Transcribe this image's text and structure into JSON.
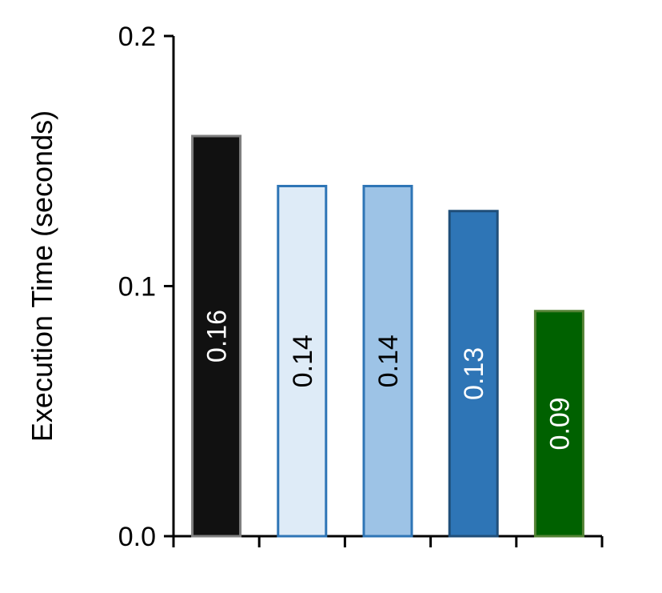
{
  "chart_data": {
    "type": "bar",
    "ylabel": "Execution Time (seconds)",
    "xlabel": "",
    "ylim": [
      0,
      0.2
    ],
    "yticks": [
      "0.0",
      "0.1",
      "0.2"
    ],
    "ytick_values": [
      0.0,
      0.1,
      0.2
    ],
    "grid": false,
    "legend": "none",
    "bars": [
      {
        "value": 0.16,
        "label": "0.16",
        "fill": "#111111",
        "stroke": "#7f7f7f",
        "label_color": "#ffffff"
      },
      {
        "value": 0.14,
        "label": "0.14",
        "fill": "#deebf7",
        "stroke": "#2e75b6",
        "label_color": "#000000"
      },
      {
        "value": 0.14,
        "label": "0.14",
        "fill": "#9dc3e6",
        "stroke": "#2e75b6",
        "label_color": "#000000"
      },
      {
        "value": 0.13,
        "label": "0.13",
        "fill": "#2e75b6",
        "stroke": "#1f4e79",
        "label_color": "#ffffff"
      },
      {
        "value": 0.09,
        "label": "0.09",
        "fill": "#006100",
        "stroke": "#548235",
        "label_color": "#ffffff"
      }
    ]
  }
}
